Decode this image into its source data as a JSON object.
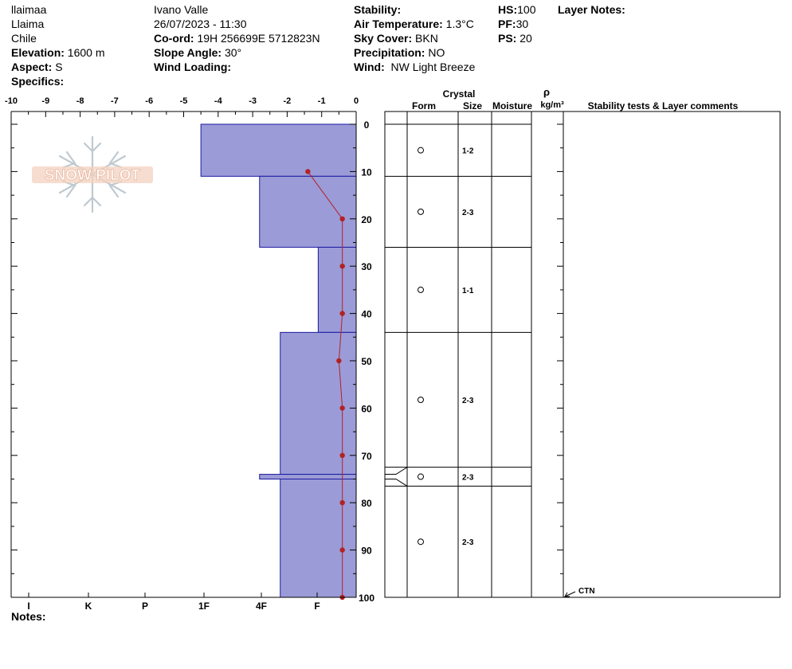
{
  "header": {
    "col1": [
      "llaimaa",
      "Llaima",
      "Chile"
    ],
    "elevation": {
      "label": "Elevation:",
      "value": "1600 m"
    },
    "aspect": {
      "label": "Aspect:",
      "value": "S"
    },
    "specifics": {
      "label": "Specifics:"
    },
    "observer": "Ivano Valle",
    "datetime": "26/07/2023 - 11:30",
    "coord": {
      "label": "Co-ord:",
      "value": "19H 256699E 5712823N"
    },
    "slope": {
      "label": "Slope Angle:",
      "value": "30°"
    },
    "wind_loading": {
      "label": "Wind Loading:"
    },
    "stability": {
      "label": "Stability:"
    },
    "air_temp": {
      "label": "Air Temperature:",
      "value": "1.3°C"
    },
    "sky": {
      "label": "Sky Cover:",
      "value": "BKN"
    },
    "precip": {
      "label": "Precipitation:",
      "value": "NO"
    },
    "wind": {
      "label": "Wind:",
      "value": "NW Light Breeze"
    },
    "hs": {
      "label": "HS:",
      "value": "100"
    },
    "pf": {
      "label": "PF:",
      "value": "30"
    },
    "ps": {
      "label": "PS:",
      "value": "20"
    },
    "layer_notes": {
      "label": "Layer Notes:"
    },
    "notes": {
      "label": "Notes:"
    }
  },
  "logo": {
    "text": "SNOW PILOT"
  },
  "chart_data": {
    "type": "snow-profile",
    "temperature_axis": {
      "ticks": [
        "-10",
        "-9",
        "-8",
        "-7",
        "-6",
        "-5",
        "-4",
        "-3",
        "-2",
        "-1",
        "0"
      ],
      "range": [
        -10,
        0
      ]
    },
    "depth_axis": {
      "ticks": [
        "0",
        "10",
        "20",
        "30",
        "40",
        "50",
        "60",
        "70",
        "80",
        "90",
        "100"
      ],
      "range": [
        0,
        100
      ]
    },
    "hardness_axis": {
      "ticks": [
        "I",
        "K",
        "P",
        "1F",
        "4F",
        "F"
      ]
    },
    "hardness_layers": [
      {
        "top": 0,
        "bottom": 11,
        "temp_equiv": -4.5
      },
      {
        "top": 11,
        "bottom": 26,
        "temp_equiv": -2.8
      },
      {
        "top": 26,
        "bottom": 44,
        "temp_equiv": -1.1
      },
      {
        "top": 44,
        "bottom": 74,
        "temp_equiv": -2.2
      },
      {
        "top": 74,
        "bottom": 75,
        "temp_equiv": -2.8
      },
      {
        "top": 75,
        "bottom": 100,
        "temp_equiv": -2.2
      }
    ],
    "temperature_profile": [
      {
        "depth": 10,
        "temp": -1.4
      },
      {
        "depth": 20,
        "temp": -0.4
      },
      {
        "depth": 30,
        "temp": -0.4
      },
      {
        "depth": 40,
        "temp": -0.4
      },
      {
        "depth": 50,
        "temp": -0.5
      },
      {
        "depth": 60,
        "temp": -0.4
      },
      {
        "depth": 70,
        "temp": -0.4
      },
      {
        "depth": 80,
        "temp": -0.4
      },
      {
        "depth": 90,
        "temp": -0.4
      },
      {
        "depth": 100,
        "temp": -0.4
      }
    ],
    "layer_table": {
      "headers": {
        "crystal": "Crystal",
        "form": "Form",
        "size": "Size",
        "moisture": "Moisture",
        "rho": "ρ",
        "density_unit": "kg/m³",
        "comments": "Stability tests & Layer comments"
      },
      "boundaries": [
        0,
        11,
        26,
        44,
        72.5,
        76.5,
        100
      ],
      "rows": [
        {
          "top": 0,
          "bottom": 11,
          "size": "1-2"
        },
        {
          "top": 11,
          "bottom": 26,
          "size": "2-3"
        },
        {
          "top": 26,
          "bottom": 44,
          "size": "1-1"
        },
        {
          "top": 44,
          "bottom": 72.5,
          "size": "2-3"
        },
        {
          "top": 72.5,
          "bottom": 76.5,
          "size": "2-3"
        },
        {
          "top": 76.5,
          "bottom": 100,
          "size": "2-3"
        }
      ],
      "tests": [
        {
          "depth": 100,
          "label": "CTN"
        }
      ]
    }
  }
}
